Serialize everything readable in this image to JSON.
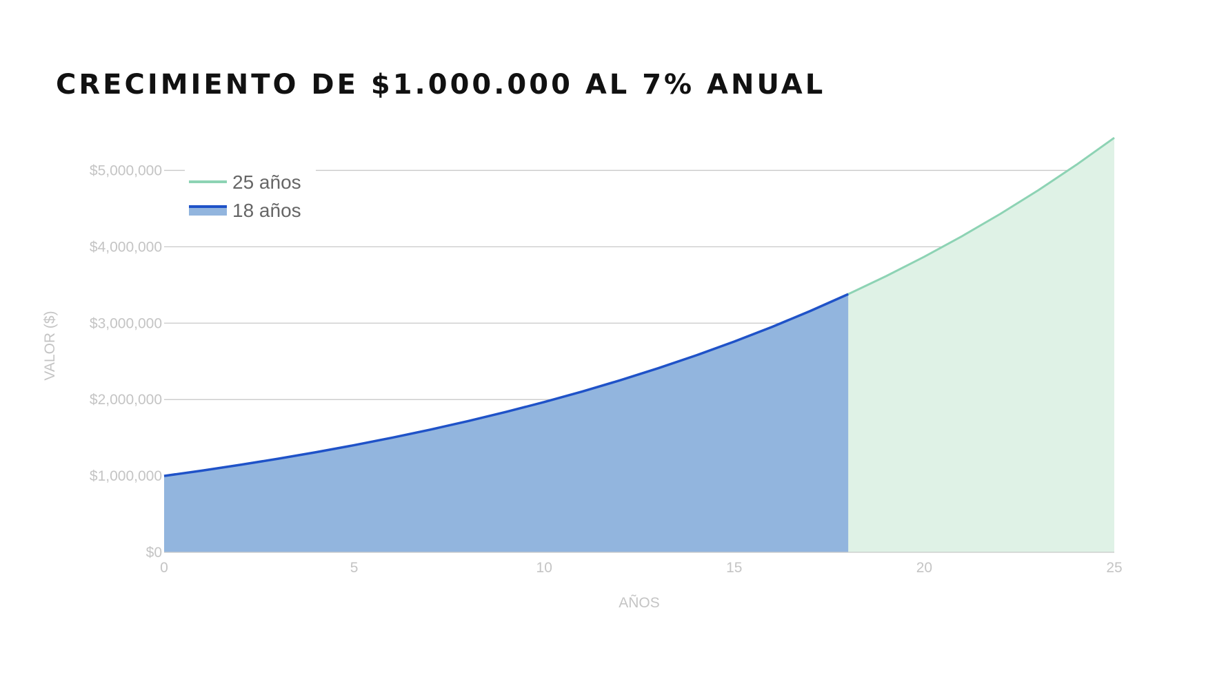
{
  "title": "CRECIMIENTO DE $1.000.000 AL 7% ANUAL",
  "chart_data": {
    "type": "area",
    "title": "CRECIMIENTO DE $1.000.000 AL 7% ANUAL",
    "xlabel": "AÑOS",
    "ylabel": "VALOR ($)",
    "xlim": [
      0,
      25
    ],
    "ylim": [
      0,
      5500000
    ],
    "x_ticks": [
      0,
      5,
      10,
      15,
      20,
      25
    ],
    "x_tick_labels": [
      "0",
      "5",
      "10",
      "15",
      "20",
      "25"
    ],
    "y_ticks": [
      0,
      1000000,
      2000000,
      3000000,
      4000000,
      5000000
    ],
    "y_tick_labels": [
      "$0",
      "$1,000,000",
      "$2,000,000",
      "$3,000,000",
      "$4,000,000",
      "$5,000,000"
    ],
    "grid": true,
    "legend_position": "top-left",
    "series": [
      {
        "name": "25 años",
        "line_color": "#8dd3b4",
        "fill_color": "#dff2e6",
        "x": [
          0,
          1,
          2,
          3,
          4,
          5,
          6,
          7,
          8,
          9,
          10,
          11,
          12,
          13,
          14,
          15,
          16,
          17,
          18,
          19,
          20,
          21,
          22,
          23,
          24,
          25
        ],
        "values": [
          1000000,
          1070000,
          1144900,
          1225043,
          1310796,
          1402552,
          1500730,
          1605781,
          1718186,
          1838459,
          1967151,
          2104852,
          2252192,
          2409845,
          2578534,
          2759032,
          2952164,
          3158815,
          3379932,
          3616528,
          3869684,
          4140562,
          4430402,
          4740530,
          5072367,
          5427433
        ]
      },
      {
        "name": "18 años",
        "line_color": "#1f52c8",
        "fill_color": "#92b5de",
        "x": [
          0,
          1,
          2,
          3,
          4,
          5,
          6,
          7,
          8,
          9,
          10,
          11,
          12,
          13,
          14,
          15,
          16,
          17,
          18
        ],
        "values": [
          1000000,
          1070000,
          1144900,
          1225043,
          1310796,
          1402552,
          1500730,
          1605781,
          1718186,
          1838459,
          1967151,
          2104852,
          2252192,
          2409845,
          2578534,
          2759032,
          2952164,
          3158815,
          3379932
        ]
      }
    ]
  }
}
